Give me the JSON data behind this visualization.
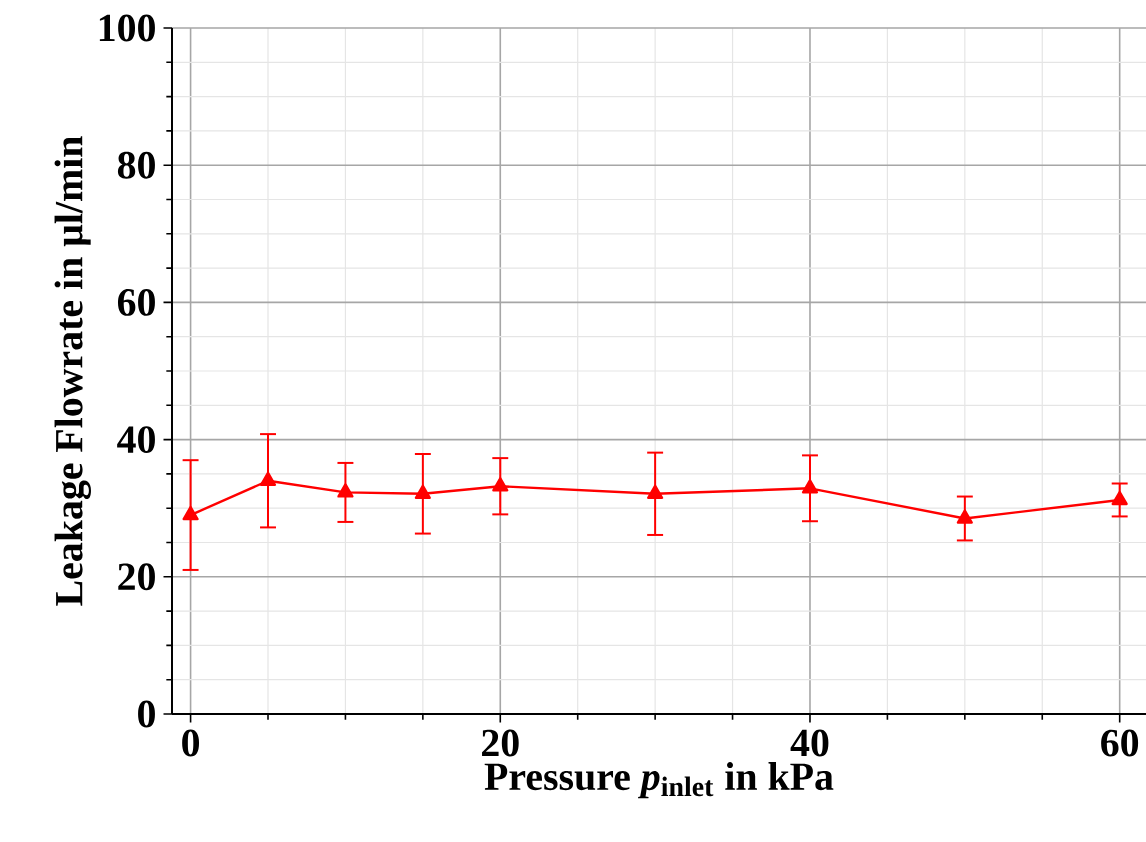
{
  "chart_data": {
    "type": "line",
    "xlabel": "Pressure *p*$_{inlet}$ in kPa",
    "ylabel": "Leakage Flowrate in μl/min",
    "x": [
      0,
      5,
      10,
      15,
      20,
      30,
      40,
      50,
      60
    ],
    "series": [
      {
        "color": "#ff0000",
        "values": [
          29,
          34,
          32.3,
          32.1,
          33.2,
          32.1,
          32.9,
          28.5,
          31.2
        ],
        "errors": [
          8,
          6.8,
          4.3,
          5.8,
          4.1,
          6,
          4.8,
          3.2,
          2.4
        ]
      }
    ],
    "xlim": [
      -1.2,
      61.7
    ],
    "ylim": [
      0,
      100
    ],
    "xticks": [
      0,
      20,
      40,
      60
    ],
    "yticks": [
      0,
      20,
      40,
      60,
      80,
      100
    ],
    "grid": true,
    "marker": "triangle",
    "line_style": "solid"
  }
}
